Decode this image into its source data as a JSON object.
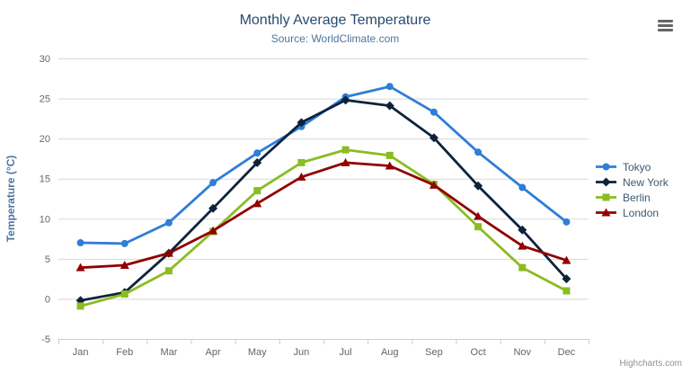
{
  "ui": {
    "credits_label": "Highcharts.com",
    "menu_icon": "hamburger-icon"
  },
  "colors": {
    "title": "#274b6d",
    "subtitle": "#4d759e",
    "axis_label": "#666666",
    "axis_title": "#4d759e",
    "grid": "#d8d8d8",
    "axis_line": "#c0d0e0",
    "credits": "#909090",
    "legend_text": "#3E576F"
  },
  "chart_data": {
    "type": "line",
    "title": "Monthly Average Temperature",
    "subtitle": "Source: WorldClimate.com",
    "xlabel": "",
    "ylabel": "Temperature (°C)",
    "categories": [
      "Jan",
      "Feb",
      "Mar",
      "Apr",
      "May",
      "Jun",
      "Jul",
      "Aug",
      "Sep",
      "Oct",
      "Nov",
      "Dec"
    ],
    "ylim": [
      -5,
      30
    ],
    "yticks": [
      -5,
      0,
      5,
      10,
      15,
      20,
      25,
      30
    ],
    "grid": true,
    "legend_position": "right",
    "series": [
      {
        "name": "Tokyo",
        "color": "#2f7ed8",
        "marker": "circle",
        "values": [
          7.0,
          6.9,
          9.5,
          14.5,
          18.2,
          21.5,
          25.2,
          26.5,
          23.3,
          18.3,
          13.9,
          9.6
        ]
      },
      {
        "name": "New York",
        "color": "#0d233a",
        "marker": "diamond",
        "values": [
          -0.2,
          0.8,
          5.7,
          11.3,
          17.0,
          22.0,
          24.8,
          24.1,
          20.1,
          14.1,
          8.6,
          2.5
        ]
      },
      {
        "name": "Berlin",
        "color": "#8bbc21",
        "marker": "square",
        "values": [
          -0.9,
          0.6,
          3.5,
          8.4,
          13.5,
          17.0,
          18.6,
          17.9,
          14.3,
          9.0,
          3.9,
          1.0
        ]
      },
      {
        "name": "London",
        "color": "#910000",
        "marker": "triangle",
        "values": [
          3.9,
          4.2,
          5.7,
          8.5,
          11.9,
          15.2,
          17.0,
          16.6,
          14.2,
          10.3,
          6.6,
          4.8
        ]
      }
    ]
  }
}
